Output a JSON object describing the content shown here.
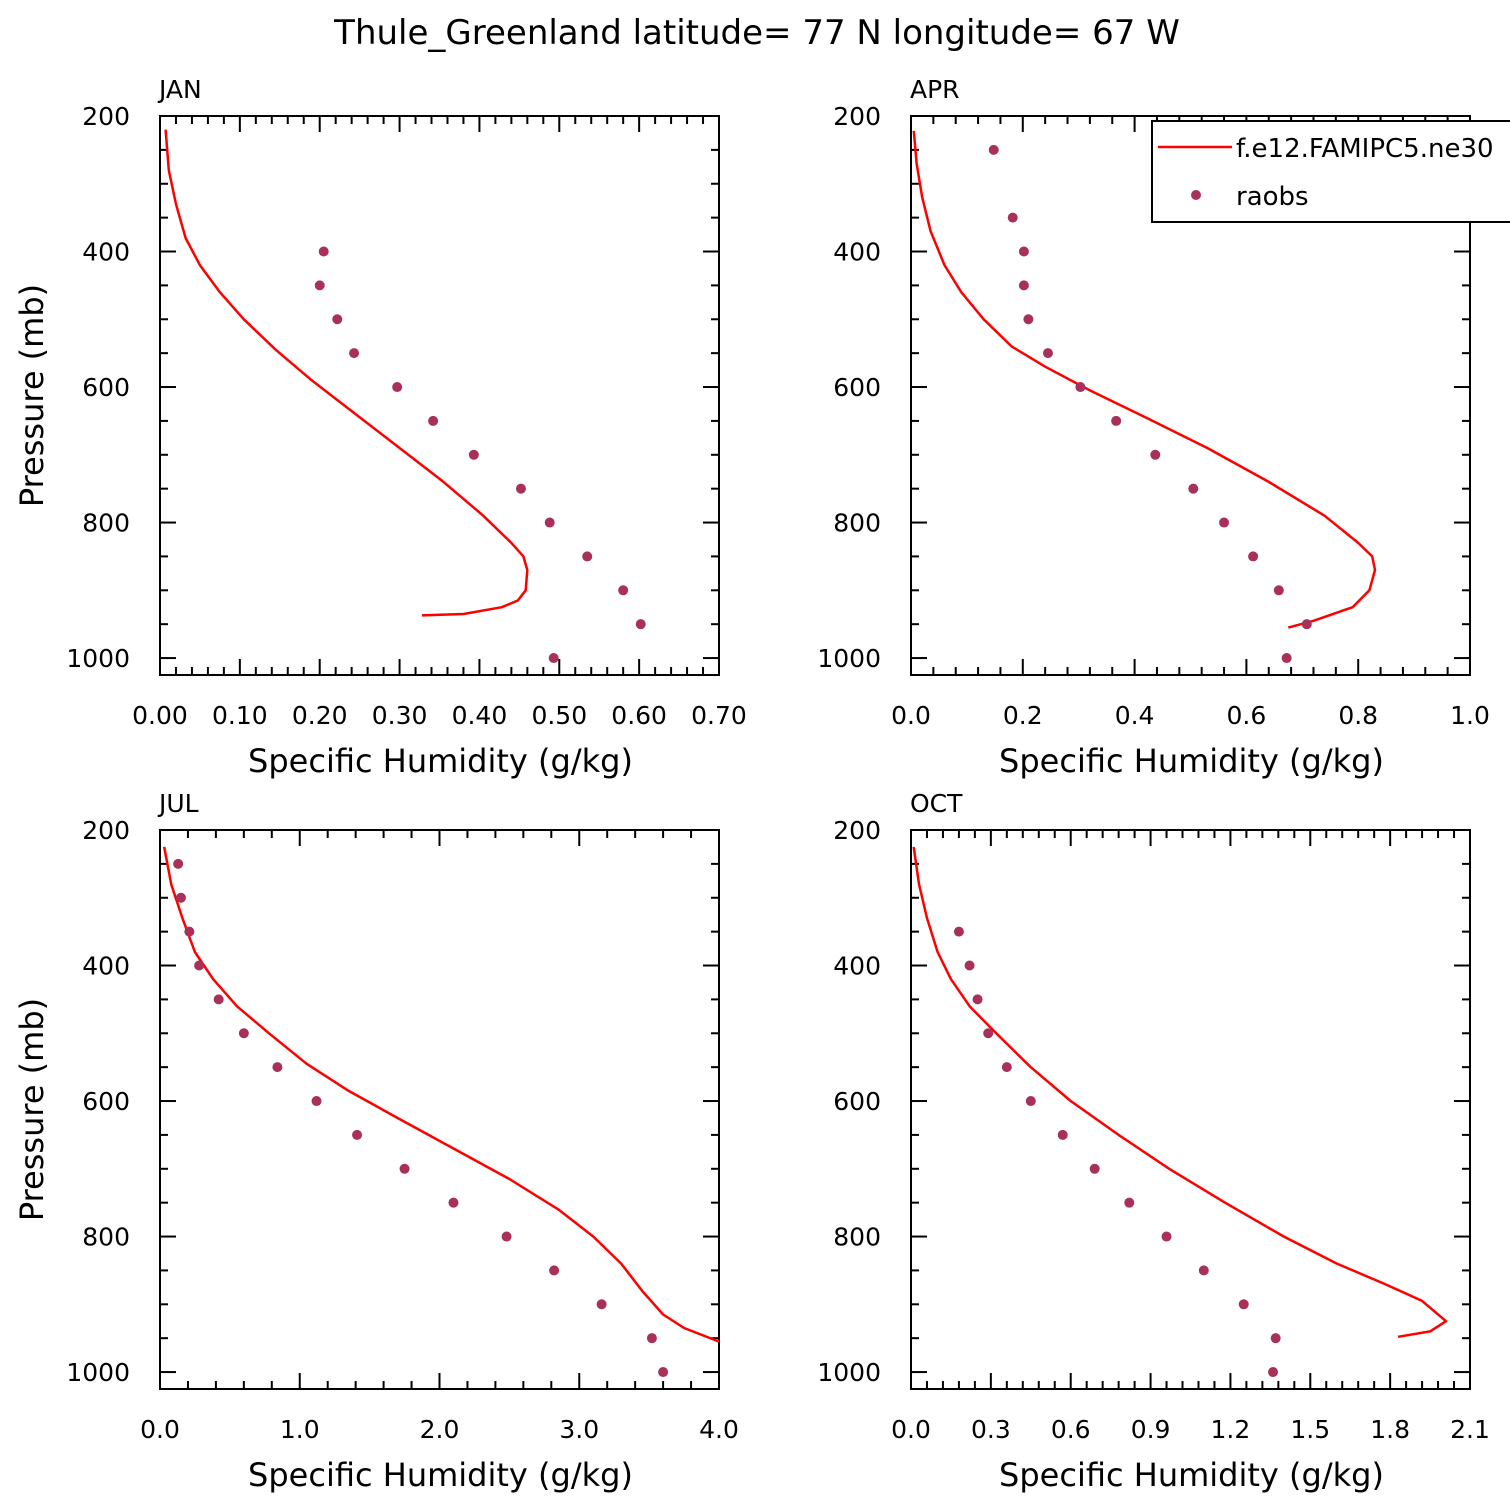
{
  "title": "Thule_Greenland  latitude= 77 N longitude= 67 W",
  "colors": {
    "model": "#ff0000",
    "obs": "#a8305a",
    "axis": "#000000"
  },
  "legend": {
    "placement": "top-right",
    "model_label": "f.e12.FAMIPC5.ne30",
    "obs_label": "raobs"
  },
  "chart_data": [
    {
      "type": "line",
      "panel": "JAN",
      "xlabel": "Specific Humidity (g/kg)",
      "ylabel": "Pressure (mb)",
      "xlim": [
        0,
        0.7
      ],
      "ylim": [
        200,
        1025
      ],
      "y_inverted": true,
      "xticks": [
        0,
        0.1,
        0.2,
        0.3,
        0.4,
        0.5,
        0.6,
        0.7
      ],
      "xtick_labels": [
        "0.00",
        "0.10",
        "0.20",
        "0.30",
        "0.40",
        "0.50",
        "0.60",
        "0.70"
      ],
      "yticks": [
        200,
        400,
        600,
        800,
        1000
      ],
      "series": [
        {
          "name": "f.e12.FAMIPC5.ne30",
          "kind": "line",
          "x": [
            0.007,
            0.011,
            0.02,
            0.032,
            0.05,
            0.075,
            0.105,
            0.145,
            0.19,
            0.245,
            0.3,
            0.355,
            0.405,
            0.44,
            0.455,
            0.46,
            0.458,
            0.448,
            0.428,
            0.38,
            0.328
          ],
          "y": [
            220,
            280,
            330,
            380,
            420,
            460,
            500,
            545,
            590,
            640,
            690,
            740,
            790,
            830,
            850,
            870,
            900,
            915,
            925,
            935,
            937
          ]
        },
        {
          "name": "raobs",
          "kind": "scatter",
          "x": [
            0.205,
            0.2,
            0.222,
            0.243,
            0.297,
            0.342,
            0.393,
            0.452,
            0.488,
            0.535,
            0.58,
            0.602,
            0.493
          ],
          "y": [
            400,
            450,
            500,
            550,
            600,
            650,
            700,
            750,
            800,
            850,
            900,
            950,
            1000
          ]
        }
      ]
    },
    {
      "type": "line",
      "panel": "APR",
      "xlabel": "Specific Humidity (g/kg)",
      "ylabel": "",
      "xlim": [
        0,
        1.0
      ],
      "ylim": [
        200,
        1025
      ],
      "y_inverted": true,
      "xticks": [
        0,
        0.2,
        0.4,
        0.6,
        0.8,
        1.0
      ],
      "xtick_labels": [
        "0.0",
        "0.2",
        "0.4",
        "0.6",
        "0.8",
        "1.0"
      ],
      "yticks": [
        200,
        400,
        600,
        800,
        1000
      ],
      "series": [
        {
          "name": "f.e12.FAMIPC5.ne30",
          "kind": "line",
          "x": [
            0.005,
            0.01,
            0.02,
            0.035,
            0.06,
            0.09,
            0.13,
            0.18,
            0.24,
            0.32,
            0.42,
            0.53,
            0.64,
            0.74,
            0.8,
            0.825,
            0.83,
            0.82,
            0.79,
            0.72,
            0.675
          ],
          "y": [
            222,
            270,
            320,
            370,
            420,
            460,
            500,
            540,
            570,
            605,
            645,
            690,
            740,
            790,
            830,
            850,
            870,
            900,
            925,
            945,
            955
          ]
        },
        {
          "name": "raobs",
          "kind": "scatter",
          "x": [
            0.148,
            0.182,
            0.202,
            0.202,
            0.21,
            0.245,
            0.303,
            0.367,
            0.437,
            0.505,
            0.56,
            0.612,
            0.658,
            0.708,
            0.672
          ],
          "y": [
            250,
            350,
            400,
            450,
            500,
            550,
            600,
            650,
            700,
            750,
            800,
            850,
            900,
            950,
            1000
          ]
        }
      ]
    },
    {
      "type": "line",
      "panel": "JUL",
      "xlabel": "Specific Humidity (g/kg)",
      "ylabel": "Pressure (mb)",
      "xlim": [
        0,
        4.0
      ],
      "ylim": [
        200,
        1025
      ],
      "y_inverted": true,
      "xticks": [
        0,
        1,
        2,
        3,
        4
      ],
      "xtick_labels": [
        "0.0",
        "1.0",
        "2.0",
        "3.0",
        "4.0"
      ],
      "yticks": [
        200,
        400,
        600,
        800,
        1000
      ],
      "series": [
        {
          "name": "f.e12.FAMIPC5.ne30",
          "kind": "line",
          "x": [
            0.03,
            0.08,
            0.16,
            0.25,
            0.38,
            0.55,
            0.78,
            1.05,
            1.35,
            1.7,
            2.1,
            2.5,
            2.85,
            3.1,
            3.3,
            3.45,
            3.6,
            3.75,
            4.0
          ],
          "y": [
            225,
            280,
            330,
            380,
            420,
            460,
            500,
            545,
            585,
            625,
            670,
            715,
            760,
            800,
            840,
            880,
            915,
            935,
            955
          ]
        },
        {
          "name": "raobs",
          "kind": "scatter",
          "x": [
            0.13,
            0.15,
            0.21,
            0.28,
            0.42,
            0.6,
            0.84,
            1.12,
            1.41,
            1.75,
            2.1,
            2.48,
            2.82,
            3.16,
            3.52,
            3.6
          ],
          "y": [
            250,
            300,
            350,
            400,
            450,
            500,
            550,
            600,
            650,
            700,
            750,
            800,
            850,
            900,
            950,
            1000
          ]
        }
      ]
    },
    {
      "type": "line",
      "panel": "OCT",
      "xlabel": "Specific Humidity (g/kg)",
      "ylabel": "",
      "xlim": [
        0,
        2.1
      ],
      "ylim": [
        200,
        1025
      ],
      "y_inverted": true,
      "xticks": [
        0,
        0.3,
        0.6,
        0.9,
        1.2,
        1.5,
        1.8,
        2.1
      ],
      "xtick_labels": [
        "0.0",
        "0.3",
        "0.6",
        "0.9",
        "1.2",
        "1.5",
        "1.8",
        "2.1"
      ],
      "yticks": [
        200,
        400,
        600,
        800,
        1000
      ],
      "series": [
        {
          "name": "f.e12.FAMIPC5.ne30",
          "kind": "line",
          "x": [
            0.01,
            0.03,
            0.06,
            0.1,
            0.15,
            0.22,
            0.32,
            0.45,
            0.6,
            0.78,
            0.97,
            1.18,
            1.4,
            1.6,
            1.78,
            1.92,
            2.01,
            1.95,
            1.83
          ],
          "y": [
            225,
            280,
            330,
            380,
            420,
            460,
            500,
            550,
            600,
            650,
            700,
            750,
            800,
            840,
            870,
            895,
            925,
            940,
            948
          ]
        },
        {
          "name": "raobs",
          "kind": "scatter",
          "x": [
            0.18,
            0.22,
            0.25,
            0.29,
            0.36,
            0.45,
            0.57,
            0.69,
            0.82,
            0.96,
            1.1,
            1.25,
            1.37,
            1.36
          ],
          "y": [
            350,
            400,
            450,
            500,
            550,
            600,
            650,
            700,
            750,
            800,
            850,
            900,
            950,
            1000
          ]
        }
      ]
    }
  ]
}
